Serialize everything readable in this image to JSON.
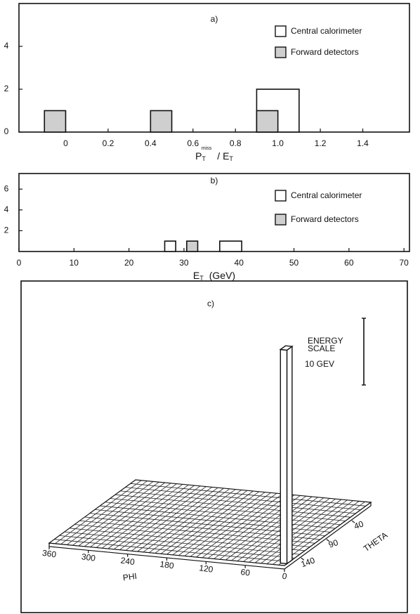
{
  "chart_data": [
    {
      "type": "hist",
      "title": "a)",
      "x_label": {
        "main": "P",
        "sub": "T",
        "sup": "miss",
        "tail": "/ E",
        "tail_sub": "T"
      },
      "xlim": [
        -0.22,
        1.62
      ],
      "xticks": [
        0,
        0.2,
        0.4,
        0.6,
        0.8,
        {
          "value": 1,
          "label": "1.0"
        },
        1.2,
        1.4
      ],
      "ylim": [
        0,
        6
      ],
      "yticks": [
        0,
        2,
        4
      ],
      "series": [
        {
          "name": "Central calorimeter",
          "color": "#ffffff",
          "bins": [
            0.9,
            1.1
          ],
          "values": [
            2
          ]
        },
        {
          "name": "Forward detectors",
          "color": "#cfcfcf",
          "bins": [
            -0.1,
            0.0,
            0.4,
            0.5,
            0.9,
            1.0
          ],
          "values": [
            1,
            0,
            1,
            0,
            1
          ]
        }
      ]
    },
    {
      "type": "hist",
      "title": "b)",
      "x_label": {
        "main": "E",
        "sub": "T",
        "tail": "(GeV)"
      },
      "xlim": [
        0,
        71
      ],
      "xticks": [
        0,
        10,
        20,
        30,
        40,
        50,
        60,
        70
      ],
      "ylim": [
        0,
        7.5
      ],
      "yticks": [
        2,
        4,
        6
      ],
      "series": [
        {
          "name": "Central calorimeter",
          "color": "#ffffff",
          "bins": [
            26.5,
            28.5,
            36.5,
            40.5
          ],
          "values": [
            1,
            0,
            1
          ]
        },
        {
          "name": "Forward detectors",
          "color": "#cfcfcf",
          "bins": [
            30.5,
            32.5
          ],
          "values": [
            1
          ]
        }
      ]
    },
    {
      "type": "lego",
      "title": "c)",
      "x_label": "PHI",
      "y_label": "THETA",
      "xlim": [
        0,
        360
      ],
      "xticks": [
        0,
        60,
        120,
        180,
        240,
        300,
        360
      ],
      "ylim": [
        0,
        170
      ],
      "yticks": [
        140,
        90,
        40
      ],
      "energy_scale": {
        "title": [
          "ENERGY",
          "SCALE"
        ],
        "value": 10,
        "label": "10 GEV"
      },
      "towers": [
        {
          "phi": 5,
          "theta": 160,
          "value": 32
        }
      ]
    }
  ]
}
